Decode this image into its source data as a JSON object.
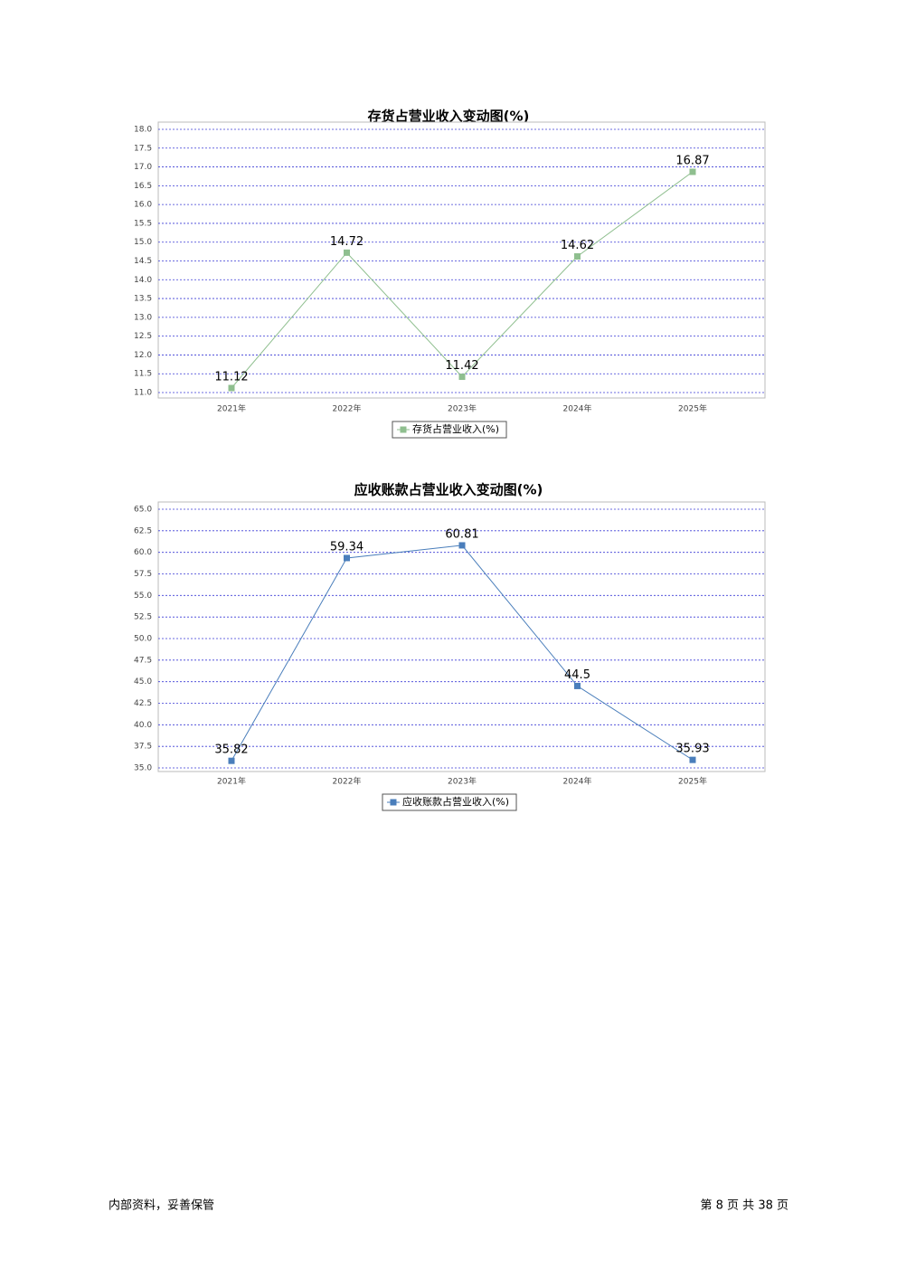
{
  "chart_data": [
    {
      "type": "line",
      "title": "存货占营业收入变动图(%)",
      "categories": [
        "2021年",
        "2022年",
        "2023年",
        "2024年",
        "2025年"
      ],
      "series": [
        {
          "name": "存货占营业收入(%)",
          "color": "#8fbf8f",
          "values": [
            11.12,
            14.72,
            11.42,
            14.62,
            16.87
          ]
        }
      ],
      "ylim": [
        11,
        18
      ],
      "yticks": [
        {
          "value": 11,
          "label": "11.0"
        },
        {
          "value": 11.5,
          "label": "11.5"
        },
        {
          "value": 12,
          "label": "12.0"
        },
        {
          "value": 12.5,
          "label": "12.5"
        },
        {
          "value": 13,
          "label": "13.0"
        },
        {
          "value": 13.5,
          "label": "13.5"
        },
        {
          "value": 14,
          "label": "14.0"
        },
        {
          "value": 14.5,
          "label": "14.5"
        },
        {
          "value": 15,
          "label": "15.0"
        },
        {
          "value": 15.5,
          "label": "15.5"
        },
        {
          "value": 16,
          "label": "16.0"
        },
        {
          "value": 16.5,
          "label": "16.5"
        },
        {
          "value": 17,
          "label": "17.0"
        },
        {
          "value": 17.5,
          "label": "17.5"
        },
        {
          "value": 18,
          "label": "18.0"
        }
      ],
      "grid": true
    },
    {
      "type": "line",
      "title": "应收账款占营业收入变动图(%)",
      "categories": [
        "2021年",
        "2022年",
        "2023年",
        "2024年",
        "2025年"
      ],
      "series": [
        {
          "name": "应收账款占营业收入(%)",
          "color": "#4a7ebb",
          "values": [
            35.82,
            59.34,
            60.81,
            44.5,
            35.93
          ]
        }
      ],
      "ylim": [
        35,
        65
      ],
      "yticks": [
        {
          "value": 35,
          "label": "35.0"
        },
        {
          "value": 37.5,
          "label": "37.5"
        },
        {
          "value": 40,
          "label": "40.0"
        },
        {
          "value": 42.5,
          "label": "42.5"
        },
        {
          "value": 45,
          "label": "45.0"
        },
        {
          "value": 47.5,
          "label": "47.5"
        },
        {
          "value": 50,
          "label": "50.0"
        },
        {
          "value": 52.5,
          "label": "52.5"
        },
        {
          "value": 55,
          "label": "55.0"
        },
        {
          "value": 57.5,
          "label": "57.5"
        },
        {
          "value": 60,
          "label": "60.0"
        },
        {
          "value": 62.5,
          "label": "62.5"
        },
        {
          "value": 65,
          "label": "65.0"
        }
      ],
      "grid": true
    }
  ],
  "footer": {
    "left": "内部资料，妥善保管",
    "right": "第 8 页  共 38 页"
  }
}
